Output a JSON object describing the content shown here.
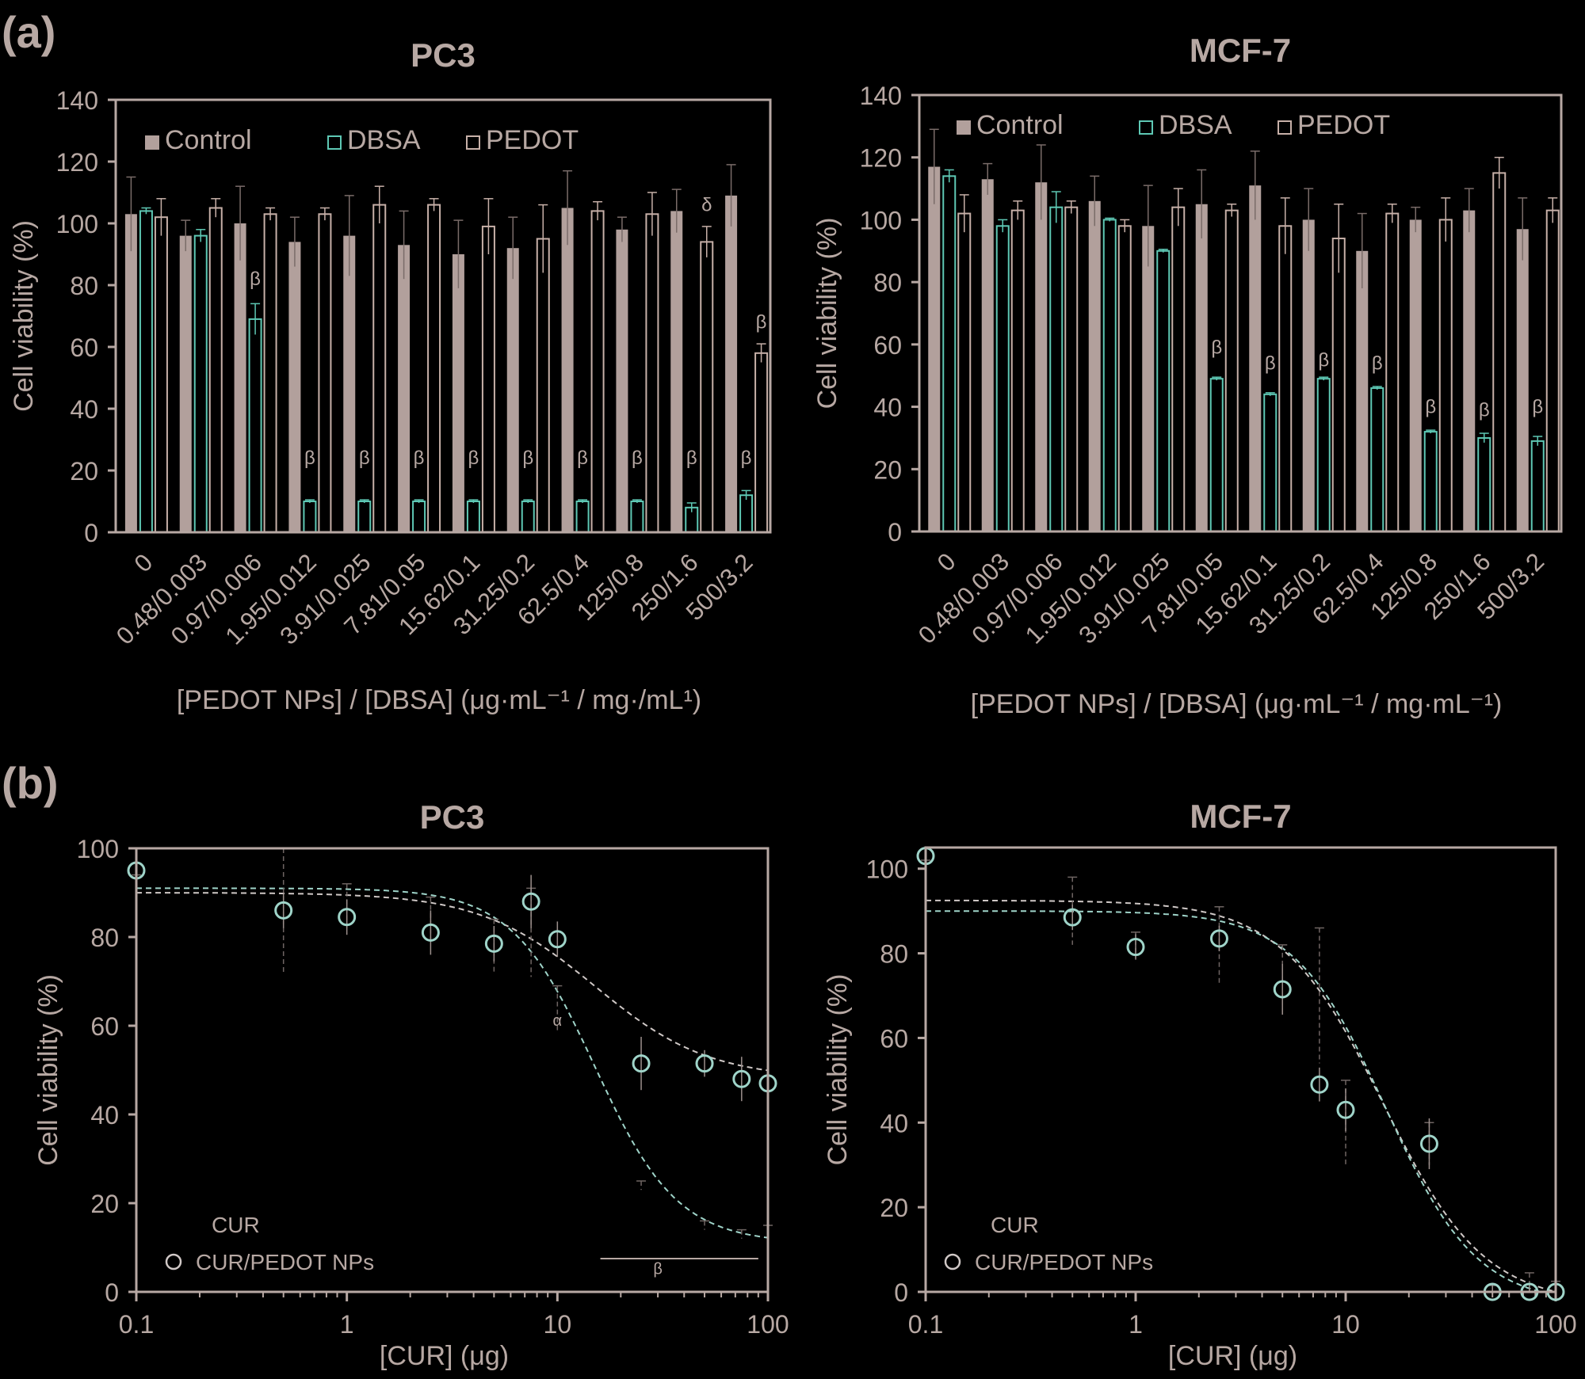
{
  "colors": {
    "background": "#000000",
    "axis": "#b7a8a3",
    "text": "#b7a8a3",
    "control_fill": "#b2a09c",
    "dbsa_edge": "#5ec8b4",
    "pedot_edge": "#c7b0a8",
    "marker": "#9fd4c9"
  },
  "panels": {
    "a_label": "(a)",
    "b_label": "(b)"
  },
  "chart_data": [
    {
      "id": "a-pc3",
      "type": "bar",
      "title": "PC3",
      "ylabel": "Cell viability (%)",
      "xlabel": "[PEDOT NPs] / [DBSA] (μg·mL⁻¹ / mg·/mL¹)",
      "ylim": [
        0,
        140
      ],
      "yticks": [
        0,
        20,
        40,
        60,
        80,
        100,
        120,
        140
      ],
      "categories": [
        "0",
        "0.48/0.003",
        "0.97/0.006",
        "1.95/0.012",
        "3.91/0.025",
        "7.81/0.05",
        "15.62/0.1",
        "31.25/0.2",
        "62.5/0.4",
        "125/0.8",
        "250/1.6",
        "500/3.2"
      ],
      "legend": [
        "Control",
        "DBSA",
        "PEDOT"
      ],
      "series": [
        {
          "name": "Control",
          "values": [
            103,
            96,
            100,
            94,
            96,
            93,
            90,
            92,
            105,
            98,
            104,
            109
          ],
          "errors": [
            12,
            5,
            12,
            8,
            13,
            11,
            11,
            10,
            12,
            4,
            7,
            10
          ]
        },
        {
          "name": "DBSA",
          "values": [
            104,
            96,
            69,
            10,
            10,
            10,
            10,
            10,
            10,
            10,
            8,
            12
          ],
          "errors": [
            1,
            2,
            5,
            0.5,
            0.5,
            0.5,
            0.5,
            0.5,
            0.5,
            0.5,
            1.5,
            1.5
          ]
        },
        {
          "name": "PEDOT",
          "values": [
            102,
            105,
            103,
            103,
            106,
            106,
            99,
            95,
            104,
            103,
            94,
            58
          ],
          "errors": [
            6,
            3,
            2,
            2,
            6,
            2,
            9,
            11,
            3,
            7,
            5,
            3
          ]
        }
      ],
      "annotations": [
        {
          "category": 2,
          "series": "DBSA",
          "y": 80,
          "text": "β"
        },
        {
          "category": 3,
          "series": "DBSA",
          "y": 22,
          "text": "β"
        },
        {
          "category": 4,
          "series": "DBSA",
          "y": 22,
          "text": "β"
        },
        {
          "category": 5,
          "series": "DBSA",
          "y": 22,
          "text": "β"
        },
        {
          "category": 6,
          "series": "DBSA",
          "y": 22,
          "text": "β"
        },
        {
          "category": 7,
          "series": "DBSA",
          "y": 22,
          "text": "β"
        },
        {
          "category": 8,
          "series": "DBSA",
          "y": 22,
          "text": "β"
        },
        {
          "category": 9,
          "series": "DBSA",
          "y": 22,
          "text": "β"
        },
        {
          "category": 10,
          "series": "DBSA",
          "y": 22,
          "text": "β"
        },
        {
          "category": 11,
          "series": "DBSA",
          "y": 22,
          "text": "β"
        },
        {
          "category": 10,
          "series": "PEDOT",
          "y": 104,
          "text": "δ"
        },
        {
          "category": 11,
          "series": "PEDOT",
          "y": 66,
          "text": "β"
        }
      ]
    },
    {
      "id": "a-mcf7",
      "type": "bar",
      "title": "MCF-7",
      "ylabel": "Cell viability (%)",
      "xlabel": "[PEDOT NPs] / [DBSA] (μg·mL⁻¹ / mg·mL⁻¹)",
      "ylim": [
        0,
        140
      ],
      "yticks": [
        0,
        20,
        40,
        60,
        80,
        100,
        120,
        140
      ],
      "categories": [
        "0",
        "0.48/0.003",
        "0.97/0.006",
        "1.95/0.012",
        "3.91/0.025",
        "7.81/0.05",
        "15.62/0.1",
        "31.25/0.2",
        "62.5/0.4",
        "125/0.8",
        "250/1.6",
        "500/3.2"
      ],
      "legend": [
        "Control",
        "DBSA",
        "PEDOT"
      ],
      "series": [
        {
          "name": "Control",
          "values": [
            117,
            113,
            112,
            106,
            98,
            105,
            111,
            100,
            90,
            100,
            103,
            97
          ],
          "errors": [
            12,
            5,
            12,
            8,
            13,
            11,
            11,
            10,
            12,
            4,
            7,
            10
          ]
        },
        {
          "name": "DBSA",
          "values": [
            114,
            98,
            104,
            100,
            90,
            49,
            44,
            49,
            46,
            32,
            30,
            29
          ],
          "errors": [
            2,
            2,
            5,
            0.5,
            0.5,
            0.5,
            0.5,
            0.5,
            0.5,
            0.5,
            1.5,
            1.5
          ]
        },
        {
          "name": "PEDOT",
          "values": [
            102,
            103,
            104,
            98,
            104,
            103,
            98,
            94,
            102,
            100,
            115,
            103
          ],
          "errors": [
            6,
            3,
            2,
            2,
            6,
            2,
            9,
            11,
            3,
            7,
            5,
            4
          ]
        }
      ],
      "annotations": [
        {
          "category": 5,
          "series": "DBSA",
          "y": 57,
          "text": "β"
        },
        {
          "category": 6,
          "series": "DBSA",
          "y": 52,
          "text": "β"
        },
        {
          "category": 7,
          "series": "DBSA",
          "y": 53,
          "text": "β"
        },
        {
          "category": 8,
          "series": "DBSA",
          "y": 52,
          "text": "β"
        },
        {
          "category": 9,
          "series": "DBSA",
          "y": 38,
          "text": "β"
        },
        {
          "category": 10,
          "series": "DBSA",
          "y": 37,
          "text": "β"
        },
        {
          "category": 11,
          "series": "DBSA",
          "y": 38,
          "text": "β"
        }
      ]
    },
    {
      "id": "b-pc3",
      "type": "scatter",
      "title": "PC3",
      "ylabel": "Cell viability (%)",
      "xlabel": "[CUR] (μg)",
      "xscale": "log",
      "xlim": [
        0.1,
        100
      ],
      "xticks": [
        0.1,
        1,
        10,
        100
      ],
      "xticklabels": [
        "0.1",
        "1",
        "10",
        "100"
      ],
      "ylim": [
        0,
        100
      ],
      "yticks": [
        0,
        20,
        40,
        60,
        80,
        100
      ],
      "legend": [
        "CUR",
        "CUR/PEDOT NPs"
      ],
      "series": [
        {
          "name": "CUR",
          "x": [
            0.1,
            0.5,
            1,
            2.5,
            5,
            7.5,
            10,
            25,
            50,
            75,
            100
          ],
          "y": [
            91,
            86,
            87,
            84,
            78,
            81,
            64,
            24,
            15,
            13,
            14
          ],
          "errors": [
            3,
            14,
            5,
            5,
            6,
            10,
            5,
            1,
            1,
            1,
            1
          ]
        },
        {
          "name": "CUR/PEDOT NPs",
          "x": [
            0.1,
            0.5,
            1,
            2.5,
            5,
            7.5,
            10,
            25,
            50,
            75,
            100
          ],
          "y": [
            95,
            86,
            84.5,
            81,
            78.5,
            88,
            79.5,
            51.5,
            51.5,
            48,
            47
          ],
          "errors": [
            3,
            4,
            4,
            5,
            4,
            6,
            4,
            6,
            3,
            5,
            4
          ]
        }
      ],
      "fits": [
        {
          "name": "CUR/PEDOT NPs fit",
          "top": 90,
          "bottom": 48,
          "ec50": 15,
          "hill": 1.6
        },
        {
          "name": "CUR fit",
          "top": 91,
          "bottom": 11,
          "ec50": 15,
          "hill": 2.2
        }
      ],
      "annotations": [
        {
          "x": 10,
          "y": 60,
          "text": "α"
        },
        {
          "x": 30,
          "y": 4,
          "text": "β"
        }
      ]
    },
    {
      "id": "b-mcf7",
      "type": "scatter",
      "title": "MCF-7",
      "ylabel": "Cell viability (%)",
      "xlabel": "[CUR] (μg)",
      "xscale": "log",
      "xlim": [
        0.1,
        100
      ],
      "xticks": [
        0.1,
        1,
        10,
        100
      ],
      "xticklabels": [
        "0.1",
        "1",
        "10",
        "100"
      ],
      "ylim": [
        0,
        105
      ],
      "yticks": [
        0,
        20,
        40,
        60,
        80,
        100
      ],
      "legend": [
        "CUR",
        "CUR/PEDOT NPs"
      ],
      "series": [
        {
          "name": "CUR",
          "x": [
            0.1,
            0.5,
            1,
            2.5,
            5,
            7.5,
            10,
            25,
            50,
            75,
            100
          ],
          "y": [
            100,
            90,
            82,
            82,
            74,
            70,
            40,
            35,
            0.5,
            1.5,
            1.5
          ],
          "errors": [
            2,
            8,
            3,
            9,
            8,
            16,
            10,
            5,
            1,
            3,
            1
          ]
        },
        {
          "name": "CUR/PEDOT NPs",
          "x": [
            0.1,
            0.5,
            1,
            2.5,
            5,
            7.5,
            10,
            25,
            50,
            75,
            100
          ],
          "y": [
            103,
            88.5,
            81.5,
            83.5,
            71.5,
            49,
            43,
            35,
            0,
            0,
            0
          ],
          "errors": [
            1,
            3,
            3,
            3,
            6,
            4,
            5,
            6,
            2,
            2,
            1
          ]
        }
      ],
      "fits": [
        {
          "name": "CUR fit",
          "top": 92.5,
          "bottom": -3,
          "ec50": 15,
          "hill": 1.8
        },
        {
          "name": "CUR/PEDOT NPs fit",
          "top": 90,
          "bottom": -3,
          "ec50": 15.5,
          "hill": 2.0
        }
      ]
    }
  ]
}
